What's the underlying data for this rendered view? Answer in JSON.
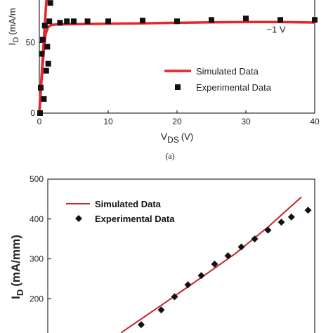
{
  "chart_data": [
    {
      "type": "line",
      "panel_label": "(a)",
      "xlabel_main": "V",
      "xlabel_sub": "DS",
      "xlabel_unit": "(V)",
      "ylabel_main": "I",
      "ylabel_sub": "D",
      "ylabel_unit": "(mA/m",
      "xlim": [
        0,
        40
      ],
      "ylim": [
        0,
        100
      ],
      "x_ticks": [
        0,
        10,
        20,
        30,
        40
      ],
      "y_ticks": [
        0,
        50
      ],
      "annotation": {
        "text": "−1 V",
        "x": 33,
        "y": 57
      },
      "legend_position": "right-middle",
      "series": [
        {
          "name": "Simulated Data",
          "style": "line",
          "color": "#e8242c",
          "x": [
            0,
            0.3,
            0.6,
            0.9,
            1.3,
            1.8,
            2.5,
            5,
            10,
            15,
            20,
            25,
            30,
            35,
            40
          ],
          "y": [
            0,
            22,
            42,
            56,
            61,
            62.5,
            62.8,
            63,
            63.3,
            63.6,
            64,
            64.3,
            64.5,
            64.5,
            64.2
          ]
        },
        {
          "name": "",
          "style": "line",
          "color": "#e8242c",
          "x": [
            0,
            0.35,
            0.7,
            1.0,
            1.3,
            1.6
          ],
          "y": [
            0,
            28,
            56,
            78,
            92,
            100
          ]
        },
        {
          "name": "Experimental Data",
          "style": "square-markers",
          "color": "#111111",
          "x": [
            0.1,
            0.2,
            0.35,
            0.5,
            0.65,
            0.8,
            1.0,
            1.15,
            1.3,
            1.45,
            1.6,
            3,
            4,
            5,
            7,
            10,
            15,
            20,
            25,
            30,
            35,
            40
          ],
          "y": [
            0,
            18,
            42,
            52,
            10,
            62,
            30,
            47,
            35,
            65,
            78,
            64,
            65,
            65,
            65,
            65,
            65.5,
            65,
            66,
            67,
            66,
            66
          ]
        }
      ]
    },
    {
      "type": "line",
      "ylabel_main": "I",
      "ylabel_sub": "D",
      "ylabel_unit": "(mA/mm)",
      "xlim": [
        0,
        40
      ],
      "ylim": [
        100,
        500
      ],
      "y_ticks": [
        200,
        300,
        400,
        500
      ],
      "legend_position": "top-left",
      "series": [
        {
          "name": "Simulated Data",
          "style": "line",
          "color": "#c0282e",
          "x": [
            11,
            18,
            24,
            28,
            33,
            38
          ],
          "y": [
            115,
            195,
            265,
            312,
            380,
            455
          ]
        },
        {
          "name": "Experimental Data",
          "style": "diamond-markers",
          "color": "#111111",
          "x": [
            14,
            17,
            19,
            21,
            23,
            25,
            27,
            29,
            31,
            33,
            35,
            36.5,
            39
          ],
          "y": [
            135,
            172,
            205,
            235,
            258,
            287,
            308,
            330,
            350,
            372,
            392,
            405,
            422
          ]
        }
      ]
    }
  ]
}
